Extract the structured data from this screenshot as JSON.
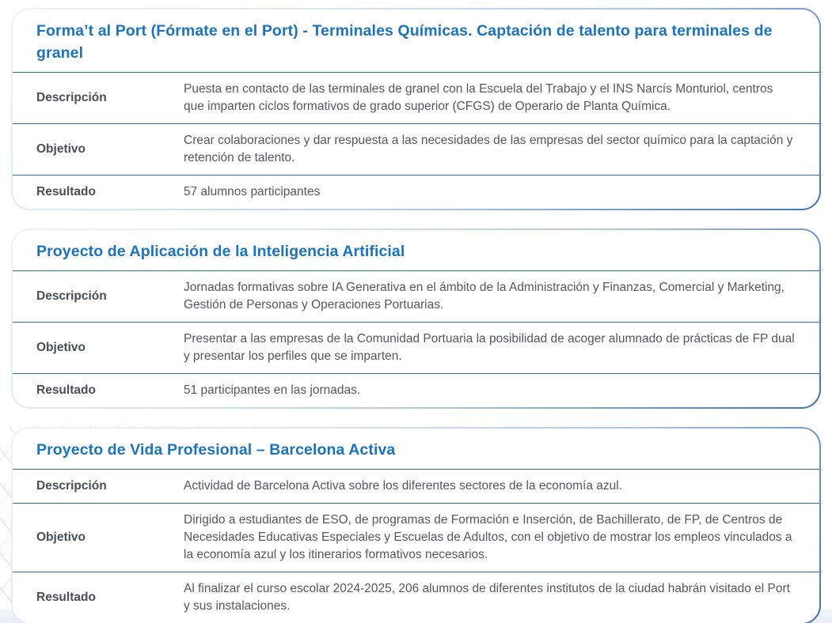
{
  "colors": {
    "title_blue": "#1b74bc",
    "separator_blue": "#2e6da9",
    "label_text": "#4a4f54",
    "body_text": "#55585b",
    "border_gradient_start": "#f1f2f4",
    "border_gradient_end": "#4276ae",
    "decoration_line_blue": "#9ebad8"
  },
  "cards": [
    {
      "title": "Forma’t al Port (Fórmate en el Port) - Terminales Químicas. Captación de talento para terminales de granel",
      "rows": [
        {
          "label": "Descripción",
          "value": "Puesta en contacto de las terminales de granel con la Escuela del Trabajo y el INS Narcís Monturiol, centros que imparten ciclos formativos de grado superior (CFGS) de Operario de Planta Química."
        },
        {
          "label": "Objetivo",
          "value": "Crear colaboraciones y dar respuesta a las necesidades de las empresas del sector químico para la captación y retención de talento."
        },
        {
          "label": "Resultado",
          "value": "57 alumnos participantes"
        }
      ]
    },
    {
      "title": "Proyecto de Aplicación de la Inteligencia Artificial",
      "rows": [
        {
          "label": "Descripción",
          "value": "Jornadas formativas sobre IA Generativa en el ámbito de la Administración y Finanzas, Comercial y Marketing, Gestión de Personas y Operaciones Portuarias."
        },
        {
          "label": "Objetivo",
          "value": "Presentar a las empresas de la Comunidad Portuaria la posibilidad de acoger alumnado de prácticas de FP dual y presentar los perfiles que se imparten."
        },
        {
          "label": "Resultado",
          "value": "51 participantes en las jornadas."
        }
      ]
    },
    {
      "title": "Proyecto de Vida Profesional – Barcelona Activa",
      "rows": [
        {
          "label": "Descripción",
          "value": "Actividad de Barcelona Activa sobre los diferentes sectores de la economía azul."
        },
        {
          "label": "Objetivo",
          "value": "Dirigido a estudiantes de ESO, de programas de Formación e Inserción, de Bachillerato, de FP, de Centros de Necesidades Educativas Especiales y Escuelas de Adultos, con el objetivo de mostrar los empleos vinculados a la economía azul y los itinerarios formativos necesarios."
        },
        {
          "label": "Resultado",
          "value": "Al finalizar el curso escolar 2024-2025, 206 alumnos de diferentes institutos de la ciudad habrán visitado el Port y sus instalaciones."
        }
      ]
    }
  ]
}
